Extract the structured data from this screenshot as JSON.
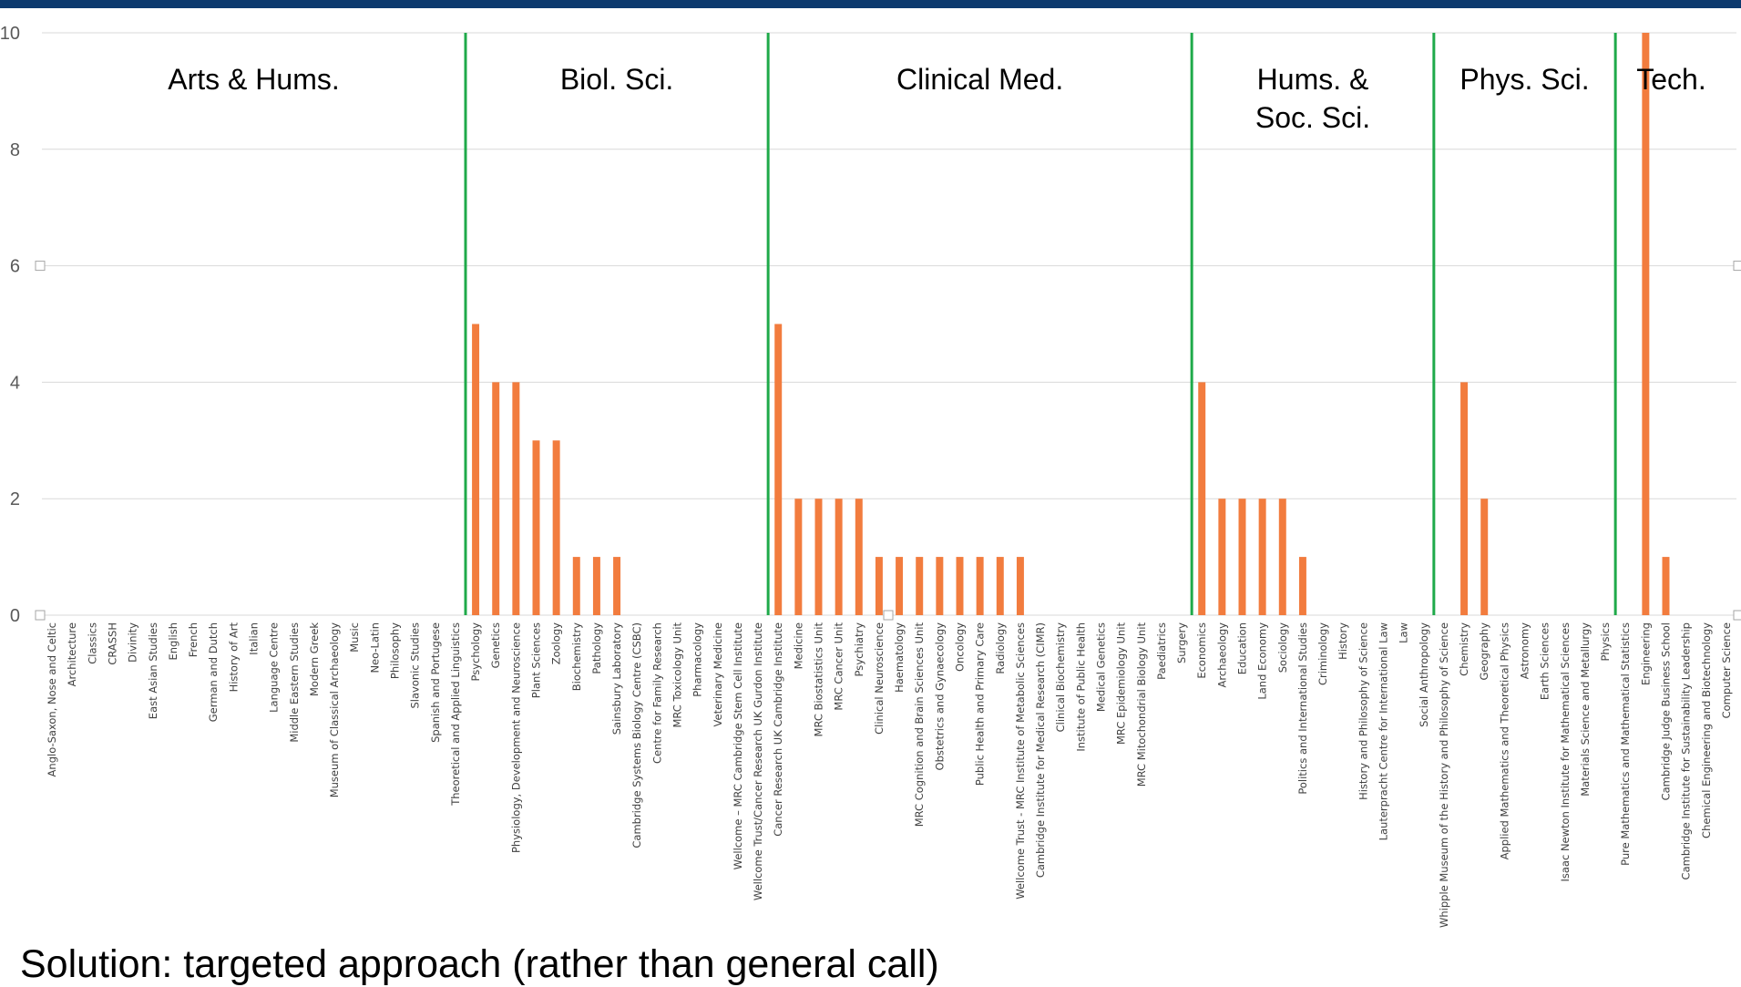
{
  "colors": {
    "header_bar": "#0d3a6e",
    "bar": "#f27c3e",
    "divider": "#1faa4a",
    "grid": "#d9d9d9"
  },
  "footer_text": "Solution: targeted approach (rather than general call)",
  "chart_data": {
    "type": "bar",
    "ylim": [
      0,
      10
    ],
    "yticks": [
      0,
      2,
      4,
      6,
      8,
      10
    ],
    "grid": true,
    "legend": "none",
    "categories": [
      "Anglo-Saxon, Nose and Celtic",
      "Architecture",
      "Classics",
      "CRASSH",
      "Divinity",
      "East Asian Studies",
      "English",
      "French",
      "German and Dutch",
      "History of Art",
      "Italian",
      "Language Centre",
      "Middle Eastern Studies",
      "Modern Greek",
      "Museum of Classical Archaeology",
      "Music",
      "Neo-Latin",
      "Philosophy",
      "Slavonic Studies",
      "Spanish and Portugese",
      "Theoretical and Applied Linguistics",
      "Psychology",
      "Genetics",
      "Physiology, Development and Neuroscience",
      "Plant Sciences",
      "Zoology",
      "Biochemistry",
      "Pathology",
      "Sainsbury Laboratory",
      "Cambridge Systems Biology Centre (CSBC)",
      "Centre for Family Research",
      "MRC Toxicology Unit",
      "Pharmacology",
      "Veterinary Medicine",
      "Wellcome – MRC Cambridge Stem Cell Institute",
      "Wellcome Trust/Cancer Research UK Gurdon Institute",
      "Cancer Research UK Cambridge Institute",
      "Medicine",
      "MRC Biostatistics Unit",
      "MRC Cancer Unit",
      "Psychiatry",
      "Clinical Neuroscience",
      "Haematology",
      "MRC Cognition and Brain Sciences Unit",
      "Obstetrics and Gynaecology",
      "Oncology",
      "Public Health and Primary Care",
      "Radiology",
      "Wellcome Trust - MRC Institute of Metabolic Sciences",
      "Cambridge Institute for Medical Research (CIMR)",
      "Clinical Biochemistry",
      "Institute of Public Health",
      "Medical Genetics",
      "MRC Epidemiology Unit",
      "MRC Mitochondrial Biology Unit",
      "Paediatrics",
      "Surgery",
      "Economics",
      "Archaeology",
      "Education",
      "Land Economy",
      "Sociology",
      "Politics and International Studies",
      "Criminology",
      "History",
      "History and Philosophy of Science",
      "Lauterpracht Centre for International Law",
      "Law",
      "Social Anthropology",
      "Whipple Museum of the History and Philosophy of Science",
      "Chemistry",
      "Geography",
      "Applied Mathematics and Theoretical Physics",
      "Astronomy",
      "Earth Sciences",
      "Isaac Newton Institute for Mathematical Sciences",
      "Materials Science and Metallurgy",
      "Physics",
      "Pure Mathematics and Mathematical Statistics",
      "Engineering",
      "Cambridge Judge Business School",
      "Cambridge Institute for Sustainability Leadership",
      "Chemical Engineering and Biotechnology",
      "Computer Science"
    ],
    "values": [
      0,
      0,
      0,
      0,
      0,
      0,
      0,
      0,
      0,
      0,
      0,
      0,
      0,
      0,
      0,
      0,
      0,
      0,
      0,
      0,
      0,
      5,
      4,
      4,
      3,
      3,
      1,
      1,
      1,
      0,
      0,
      0,
      0,
      0,
      0,
      0,
      5,
      2,
      2,
      2,
      2,
      1,
      1,
      1,
      1,
      1,
      1,
      1,
      1,
      0,
      0,
      0,
      0,
      0,
      0,
      0,
      0,
      4,
      2,
      2,
      2,
      2,
      1,
      0,
      0,
      0,
      0,
      0,
      0,
      0,
      4,
      2,
      0,
      0,
      0,
      0,
      0,
      0,
      0,
      10,
      1,
      0,
      0,
      0
    ],
    "groups": [
      {
        "label": "Arts & Hums.",
        "start": 0,
        "end": 20
      },
      {
        "label": "Biol. Sci.",
        "start": 21,
        "end": 35
      },
      {
        "label": "Clinical Med.",
        "start": 36,
        "end": 56
      },
      {
        "label": "Hums. & Soc. Sci.",
        "start": 57,
        "end": 68
      },
      {
        "label": "Phys. Sci.",
        "start": 69,
        "end": 77
      },
      {
        "label": "Tech.",
        "start": 78,
        "end": 82
      }
    ]
  }
}
